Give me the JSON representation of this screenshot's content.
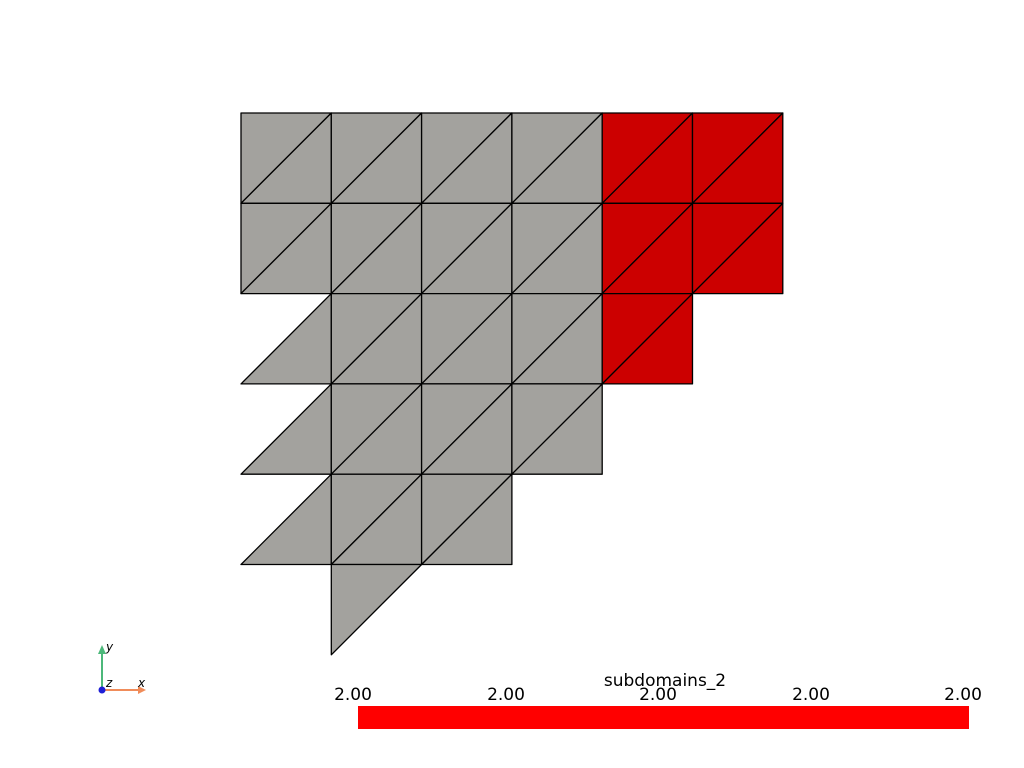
{
  "colors": {
    "background": "#ffffff",
    "subdomain_default": "#a3a29e",
    "subdomain_highlight": "#cc0000",
    "edge": "#000000",
    "scalar_bar": "#ff0000",
    "axis_x": "#f08c5a",
    "axis_y": "#4cb87a",
    "axis_z": "#1f1fd6"
  },
  "mesh": {
    "rows": [
      {
        "cells": [
          "square",
          "square",
          "square",
          "square",
          "square-red",
          "square-red"
        ]
      },
      {
        "cells": [
          "square",
          "square",
          "square",
          "square",
          "square-red",
          "square-red"
        ]
      },
      {
        "cells": [
          "lower-tri",
          "square",
          "square",
          "square",
          "square-red"
        ]
      },
      {
        "cells": [
          "lower-tri",
          "square",
          "square",
          "square"
        ]
      },
      {
        "cells": [
          "lower-tri",
          "square",
          "square"
        ]
      },
      {
        "cells": [
          "none",
          "upper-tri"
        ]
      }
    ]
  },
  "scalar_bar": {
    "title": "subdomains_2",
    "tick_labels": [
      "2.00",
      "2.00",
      "2.00",
      "2.00",
      "2.00"
    ]
  },
  "axes_widget": {
    "x_label": "x",
    "y_label": "y",
    "z_label": "z"
  }
}
